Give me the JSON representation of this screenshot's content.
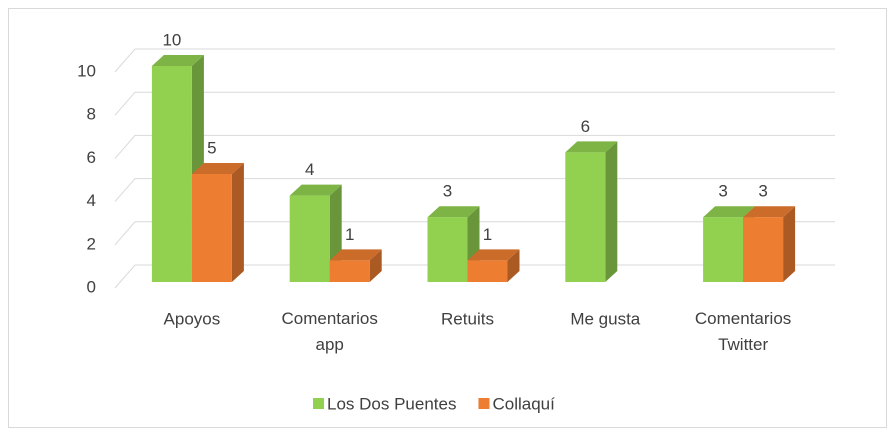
{
  "chart_data": {
    "type": "bar3d",
    "categories": [
      "Apoyos",
      "Comentarios app",
      "Retuits",
      "Me gusta",
      "Comentarios Twitter"
    ],
    "series": [
      {
        "name": "Los Dos Puentes",
        "color": "#92d050",
        "values": [
          10,
          4,
          3,
          6,
          3
        ]
      },
      {
        "name": "Collaquí",
        "color": "#ed7d31",
        "values": [
          5,
          1,
          1,
          null,
          3
        ]
      }
    ],
    "ylim": [
      0,
      10
    ],
    "yticks": [
      0,
      2,
      4,
      6,
      8,
      10
    ],
    "grid": true,
    "legend": "bottom"
  }
}
